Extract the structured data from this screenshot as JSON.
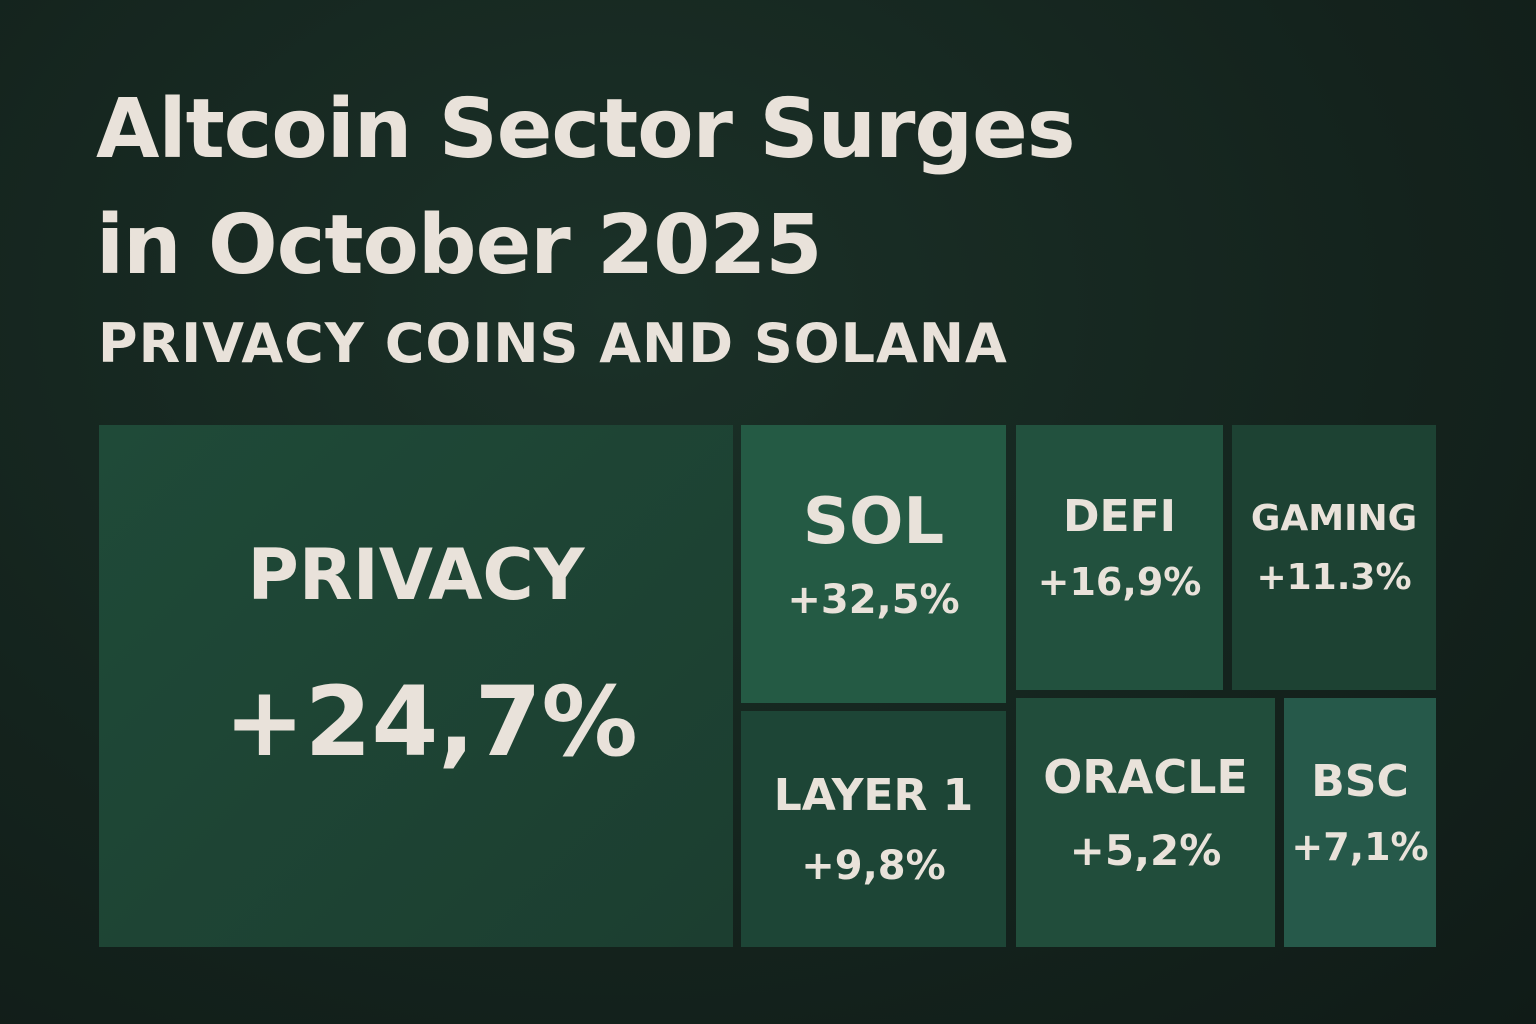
{
  "title": [
    "Altcoin Sector Surges",
    "in October 2025"
  ],
  "subtitle": "PRIVACY COINS AND SOLANA",
  "tiles": [
    {
      "label": "PRIVACY",
      "value": "+24,7%"
    },
    {
      "label": "SOL",
      "value": "+32,5%"
    },
    {
      "label": "DEFI",
      "value": "+16,9%"
    },
    {
      "label": "GAMING",
      "value": "+11.3%"
    },
    {
      "label": "LAYER 1",
      "value": "+9,8%"
    },
    {
      "label": "ORACLE",
      "value": "+5,2%"
    },
    {
      "label": "BSC",
      "value": "+7,1%"
    }
  ]
}
